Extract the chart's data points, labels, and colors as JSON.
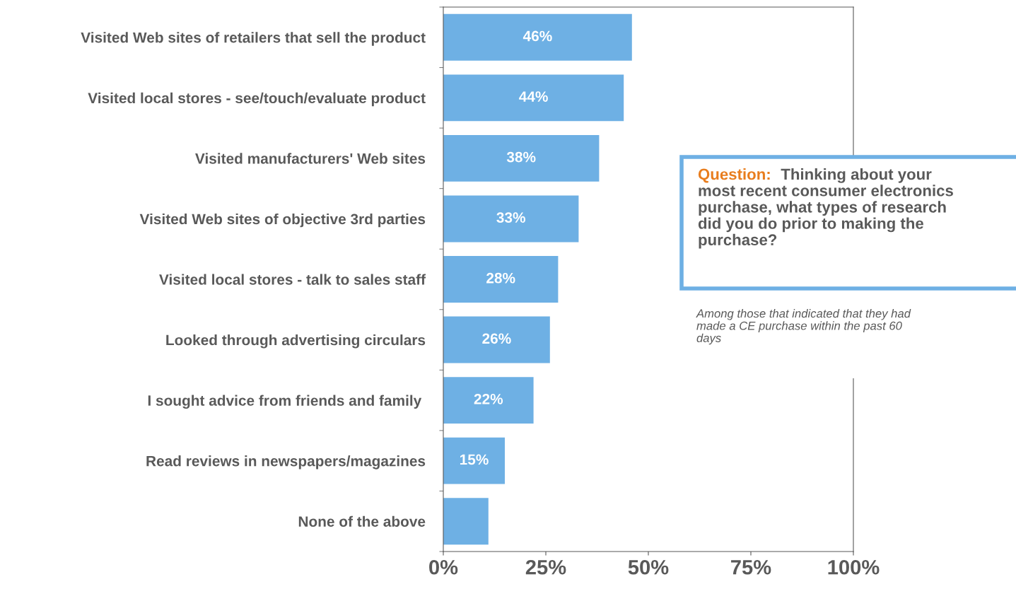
{
  "chart_data": {
    "type": "bar",
    "orientation": "horizontal",
    "categories": [
      "Visited Web sites of retailers that sell the product",
      "Visited local stores - see/touch/evaluate product",
      "Visited manufacturers' Web sites",
      "Visited Web sites of objective 3rd parties",
      "Visited local stores - talk to sales staff",
      "Looked through advertising circulars",
      "I sought advice from friends and family ",
      "Read reviews in newspapers/magazines",
      "None of the above"
    ],
    "values": [
      46,
      44,
      38,
      33,
      28,
      26,
      22,
      15,
      11
    ],
    "value_labels": [
      "46%",
      "44%",
      "38%",
      "33%",
      "28%",
      "26%",
      "22%",
      "15%",
      null
    ],
    "color": "#6eb0e4",
    "xlim": [
      0,
      100
    ],
    "xticks": [
      {
        "value": 0,
        "label": "0%"
      },
      {
        "value": 25,
        "label": "25%"
      },
      {
        "value": 50,
        "label": "50%"
      },
      {
        "value": 75,
        "label": "75%"
      },
      {
        "value": 100,
        "label": "100%"
      }
    ],
    "grid": false,
    "legend": false,
    "annotations": [
      "Question:",
      "Thinking about your\nmost recent consumer electronics\npurchase, what types of research\ndid you do prior to making the\npurchase?",
      "Among those that indicated that they had\nmade a CE purchase within the past 60\ndays"
    ]
  }
}
